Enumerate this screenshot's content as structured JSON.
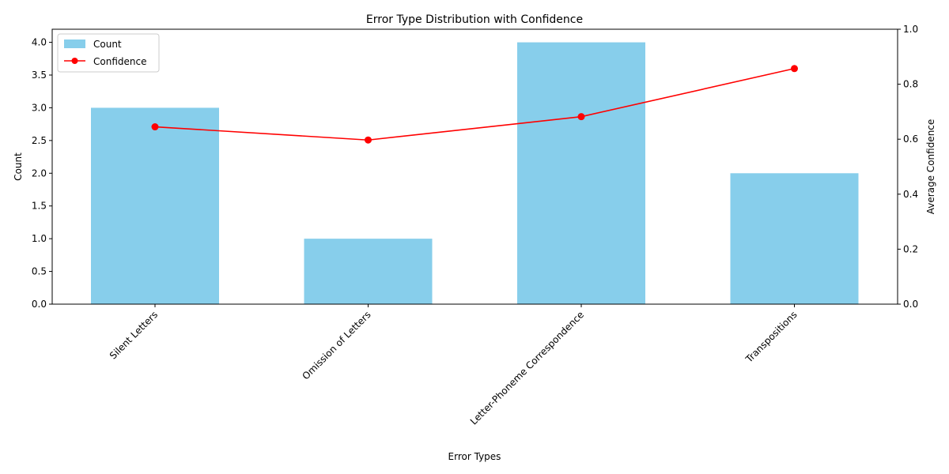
{
  "chart_data": {
    "type": "bar",
    "title": "Error Type Distribution with Confidence",
    "xlabel": "Error Types",
    "ylabel": "Count",
    "y2label": "Average Confidence",
    "categories": [
      "Silent Letters",
      "Omission of Letters",
      "Letter-Phoneme Correspondence",
      "Transpositions"
    ],
    "series": [
      {
        "name": "Count",
        "type": "bar",
        "axis": "left",
        "color": "#87ceeb",
        "values": [
          3,
          1,
          4,
          2
        ]
      },
      {
        "name": "Confidence",
        "type": "line",
        "axis": "right",
        "color": "#ff0000",
        "values": [
          0.645,
          0.597,
          0.682,
          0.857
        ]
      }
    ],
    "ylim": [
      0,
      4.2
    ],
    "y2lim": [
      0,
      1.0
    ],
    "yticks": [
      "0.0",
      "0.5",
      "1.0",
      "1.5",
      "2.0",
      "2.5",
      "3.0",
      "3.5",
      "4.0"
    ],
    "y2ticks": [
      "0.0",
      "0.2",
      "0.4",
      "0.6",
      "0.8",
      "1.0"
    ],
    "grid": false,
    "legend": {
      "position": "top-left",
      "entries": [
        "Count",
        "Confidence"
      ]
    }
  }
}
